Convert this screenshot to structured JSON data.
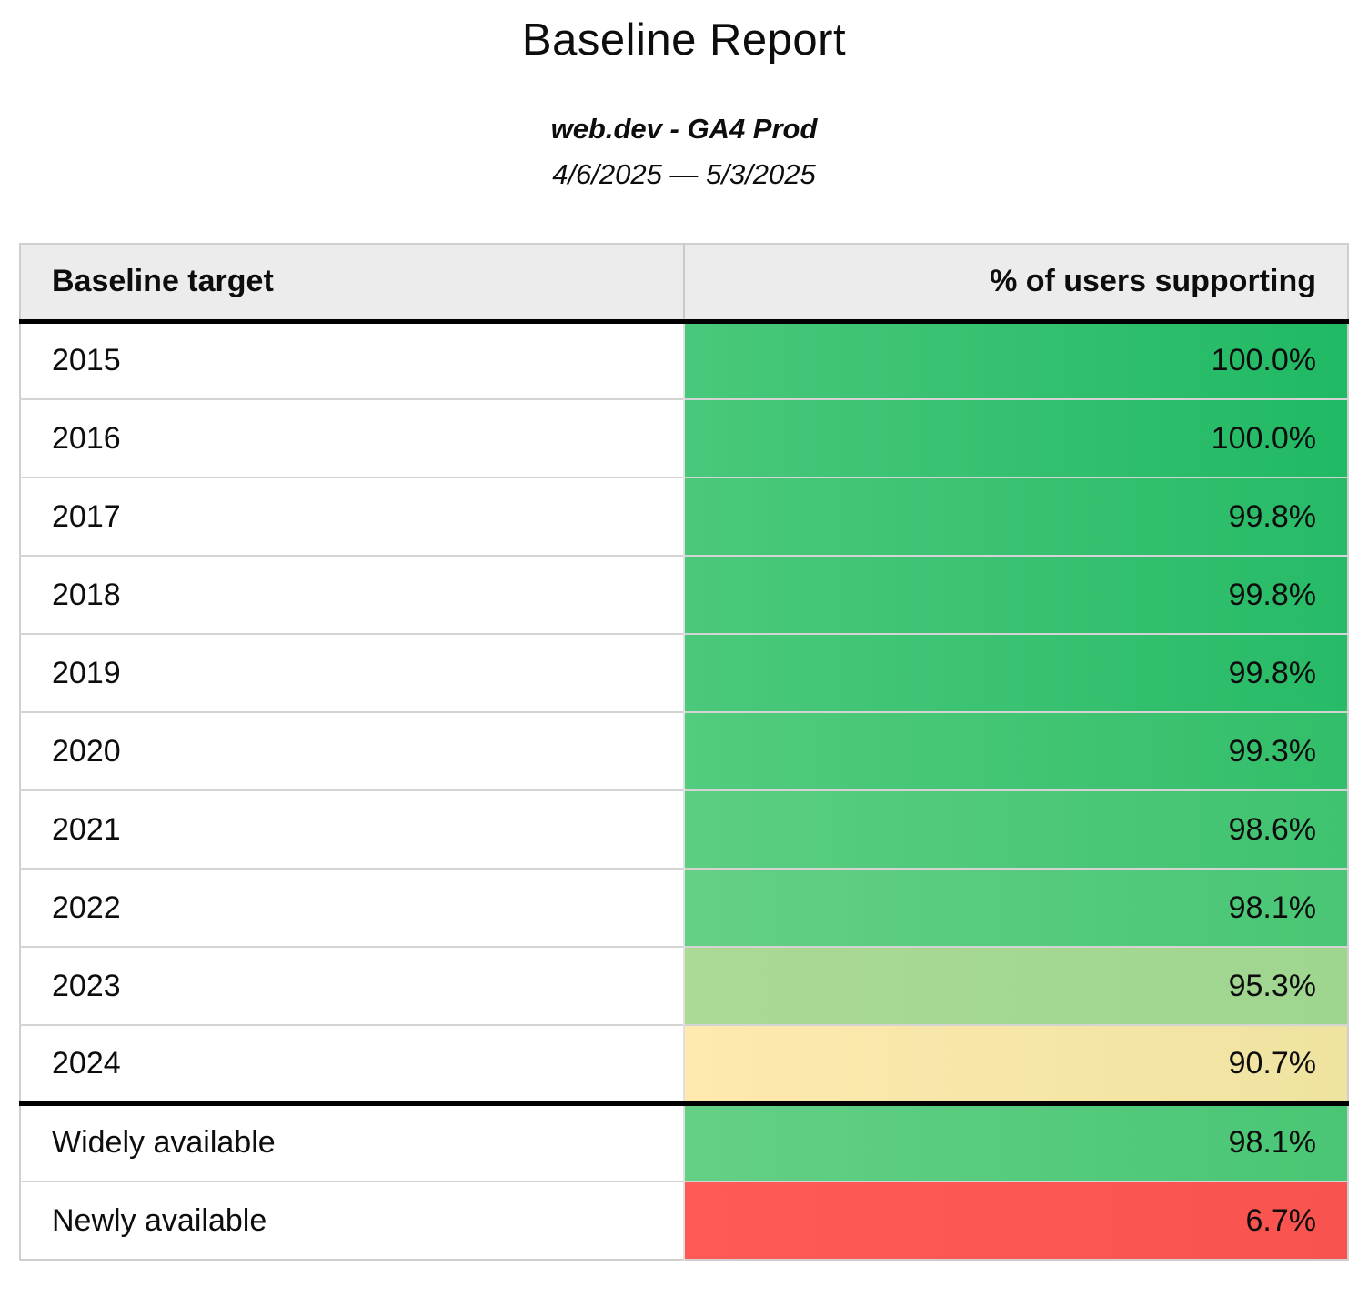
{
  "header": {
    "title": "Baseline Report",
    "subtitle": "web.dev - GA4 Prod",
    "date_range": "4/6/2025 — 5/3/2025"
  },
  "table": {
    "columns": [
      "Baseline target",
      "% of users supporting"
    ],
    "rows": [
      {
        "label": "2015",
        "value": "100.0%",
        "color_left": "#49c87a",
        "color_right": "#20b964"
      },
      {
        "label": "2016",
        "value": "100.0%",
        "color_left": "#49c87a",
        "color_right": "#20b964"
      },
      {
        "label": "2017",
        "value": "99.8%",
        "color_left": "#4bc97b",
        "color_right": "#27bb67"
      },
      {
        "label": "2018",
        "value": "99.8%",
        "color_left": "#4bc97b",
        "color_right": "#27bb67"
      },
      {
        "label": "2019",
        "value": "99.8%",
        "color_left": "#4bc97b",
        "color_right": "#27bb67"
      },
      {
        "label": "2020",
        "value": "99.3%",
        "color_left": "#52cc7d",
        "color_right": "#32be6a"
      },
      {
        "label": "2021",
        "value": "98.6%",
        "color_left": "#5cce81",
        "color_right": "#3fc370"
      },
      {
        "label": "2022",
        "value": "98.1%",
        "color_left": "#64d085",
        "color_right": "#49c675"
      },
      {
        "label": "2023",
        "value": "95.3%",
        "color_left": "#abd996",
        "color_right": "#9ed68f"
      },
      {
        "label": "2024",
        "value": "90.7%",
        "color_left": "#fee9af",
        "color_right": "#efe3a0"
      },
      {
        "label": "Widely available",
        "value": "98.1%",
        "color_left": "#64d085",
        "color_right": "#49c675"
      },
      {
        "label": "Newly available",
        "value": "6.7%",
        "color_left": "#ff5a55",
        "color_right": "#f9534f"
      }
    ]
  },
  "colors": {
    "header_background": "#ececec",
    "divider_black": "#000000",
    "divider_gray": "#d4d4d4",
    "outer_border": "#cfcfcf",
    "text": "#0d0d0d"
  },
  "chart_data": {
    "type": "table",
    "title": "Baseline Report",
    "subtitle": "web.dev - GA4 Prod",
    "date_range": "4/6/2025 — 5/3/2025",
    "columns": [
      "Baseline target",
      "% of users supporting"
    ],
    "categories": [
      "2015",
      "2016",
      "2017",
      "2018",
      "2019",
      "2020",
      "2021",
      "2022",
      "2023",
      "2024",
      "Widely available",
      "Newly available"
    ],
    "values": [
      100.0,
      100.0,
      99.8,
      99.8,
      99.8,
      99.3,
      98.6,
      98.1,
      95.3,
      90.7,
      98.1,
      6.7
    ],
    "value_unit": "%",
    "color_scale": "red-yellow-green heatmap on value cells"
  }
}
